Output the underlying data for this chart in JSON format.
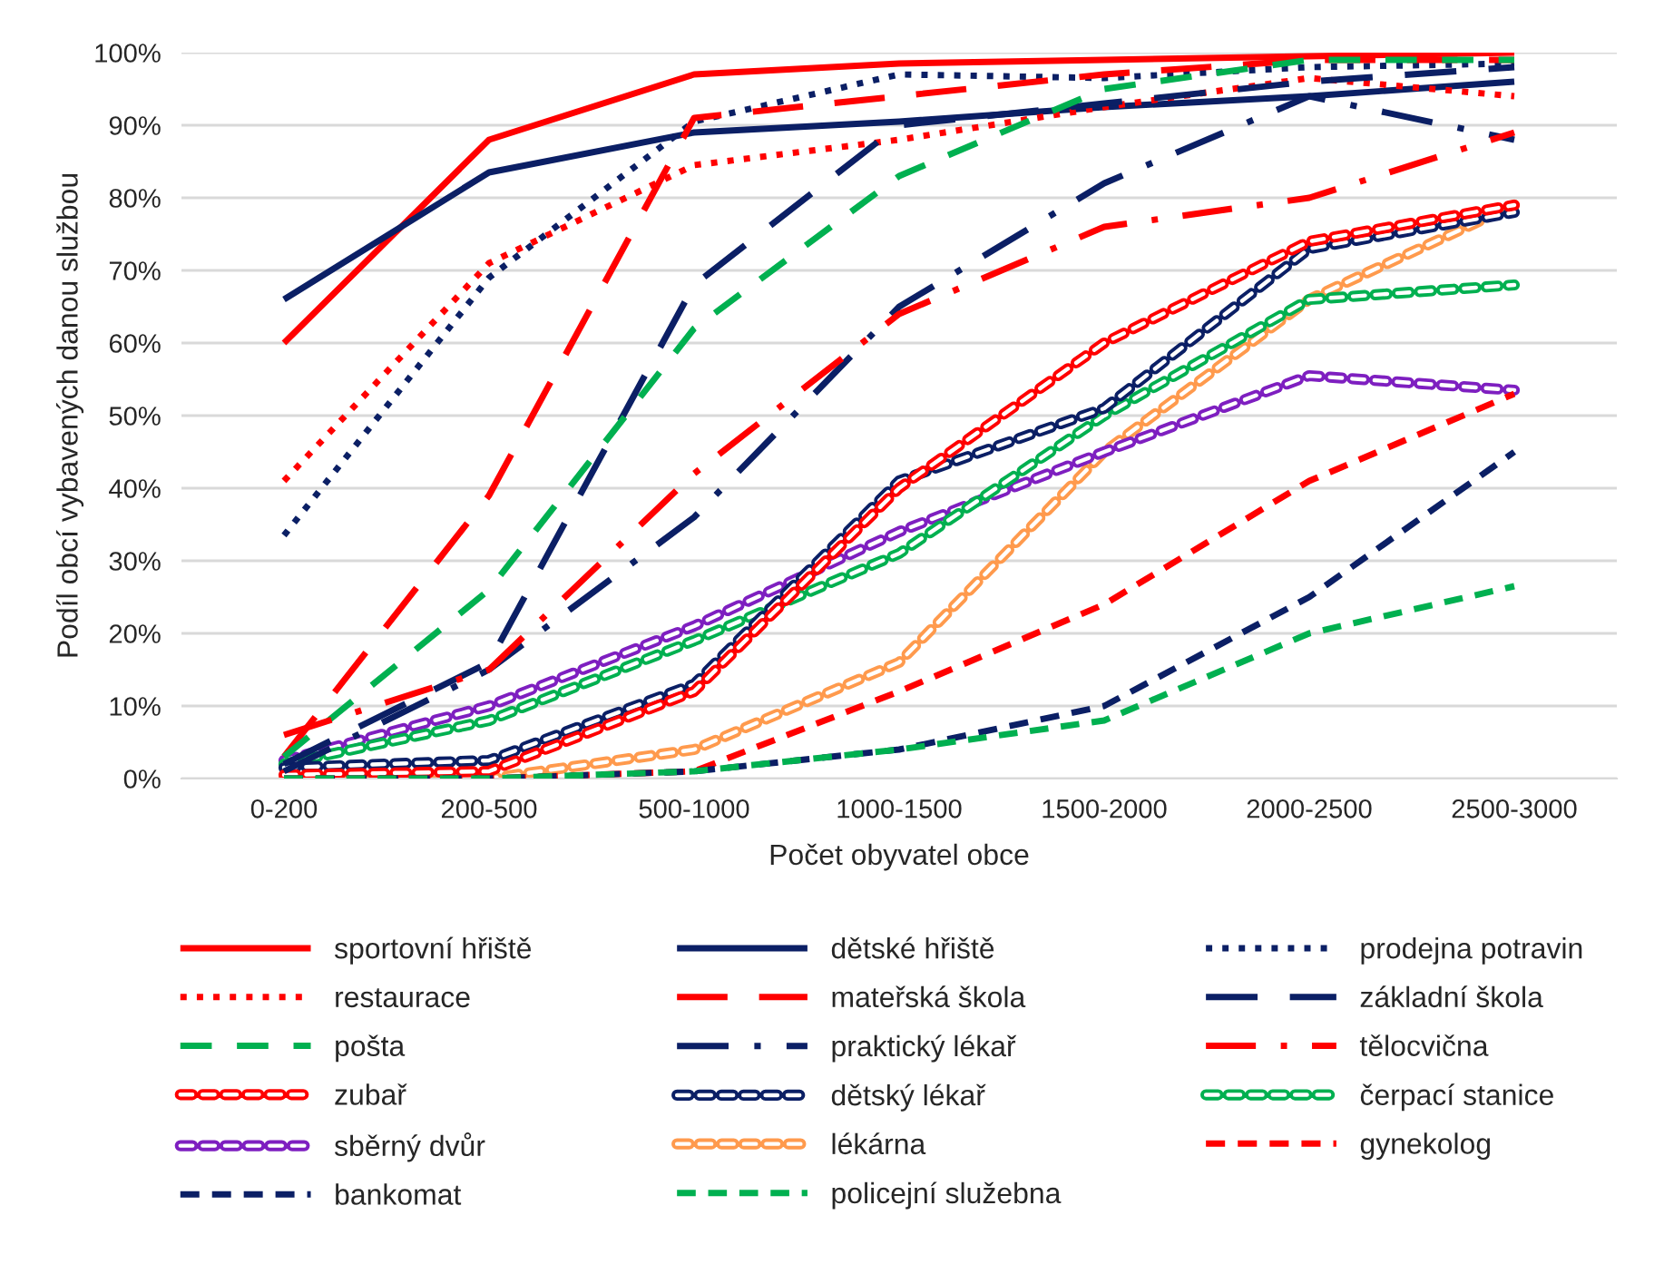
{
  "chart_data": {
    "type": "line",
    "xlabel": "Počet obyvatel obce",
    "ylabel": "Podíl obcí vybavených danou službou",
    "categories": [
      "0-200",
      "200-500",
      "500-1000",
      "1000-1500",
      "1500-2000",
      "2000-2500",
      "2500-3000"
    ],
    "ylim": [
      0,
      100
    ],
    "yticks": [
      {
        "value": 0,
        "label": "0%"
      },
      {
        "value": 10,
        "label": "10%"
      },
      {
        "value": 20,
        "label": "20%"
      },
      {
        "value": 30,
        "label": "30%"
      },
      {
        "value": 40,
        "label": "40%"
      },
      {
        "value": 50,
        "label": "50%"
      },
      {
        "value": 60,
        "label": "60%"
      },
      {
        "value": 70,
        "label": "70%"
      },
      {
        "value": 80,
        "label": "80%"
      },
      {
        "value": 90,
        "label": "90%"
      },
      {
        "value": 100,
        "label": "100%"
      }
    ],
    "grid": "y",
    "legend": "bottom",
    "marker": "none",
    "series": [
      {
        "name": "sportovní hřiště",
        "color": "#ff0000",
        "line_style": "solid",
        "values": [
          60,
          88,
          97,
          98.5,
          99,
          99.5,
          100
        ]
      },
      {
        "name": "dětské hřiště",
        "color": "#0b1f65",
        "line_style": "solid",
        "values": [
          66,
          83.5,
          89,
          90.5,
          92.5,
          94,
          96
        ]
      },
      {
        "name": "prodejna potravin",
        "color": "#0b1f65",
        "line_style": "dotted",
        "values": [
          33.5,
          69,
          90.5,
          97,
          96.5,
          98,
          98.5
        ]
      },
      {
        "name": "restaurace",
        "color": "#ff0000",
        "line_style": "dotted",
        "values": [
          41,
          71,
          84.5,
          88,
          92.5,
          96.5,
          94
        ]
      },
      {
        "name": "mateřská škola",
        "color": "#ff0000",
        "line_style": "long dash",
        "values": [
          3,
          39,
          91,
          94,
          97,
          99,
          99
        ]
      },
      {
        "name": "základní škola",
        "color": "#0b1f65",
        "line_style": "long dash",
        "values": [
          2,
          16,
          68,
          90,
          93,
          96,
          98
        ]
      },
      {
        "name": "pošta",
        "color": "#00b050",
        "line_style": "dash",
        "values": [
          3,
          26,
          62,
          83,
          95,
          99,
          99
        ]
      },
      {
        "name": "praktický lékař",
        "color": "#0b1f65",
        "line_style": "long dash dot",
        "values": [
          1,
          15,
          36,
          65,
          82,
          94,
          88
        ]
      },
      {
        "name": "tělocvična",
        "color": "#ff0000",
        "line_style": "long dash dot",
        "values": [
          6,
          15,
          42,
          64,
          76,
          80,
          89
        ]
      },
      {
        "name": "zubař",
        "color": "#ff0000",
        "line_style": "double dash",
        "values": [
          0.5,
          1,
          12,
          40,
          60,
          74,
          79
        ]
      },
      {
        "name": "dětský lékař",
        "color": "#0b1f65",
        "line_style": "double dash",
        "values": [
          1.5,
          2.5,
          13,
          41,
          51,
          73,
          78
        ]
      },
      {
        "name": "čerpací stanice",
        "color": "#00b050",
        "line_style": "double dash",
        "values": [
          2,
          8,
          19,
          31,
          50,
          66,
          68
        ]
      },
      {
        "name": "sběrný dvůr",
        "color": "#7e1fc0",
        "line_style": "double dash",
        "values": [
          2.5,
          10,
          21,
          34,
          45,
          55.5,
          53.5
        ]
      },
      {
        "name": "lékárna",
        "color": "#ff9a4d",
        "line_style": "double dash",
        "values": [
          0,
          0,
          4,
          16,
          45,
          66,
          79
        ]
      },
      {
        "name": "gynekolog",
        "color": "#ff0000",
        "line_style": "short dash",
        "values": [
          0,
          0,
          1,
          12,
          24,
          41,
          53
        ]
      },
      {
        "name": "bankomat",
        "color": "#0b1f65",
        "line_style": "short dash",
        "values": [
          0,
          0,
          1,
          4,
          10,
          25,
          45
        ]
      },
      {
        "name": "policejní služebna",
        "color": "#00b050",
        "line_style": "short dash",
        "values": [
          0,
          0,
          1,
          4,
          8,
          20,
          26.5
        ]
      }
    ]
  }
}
